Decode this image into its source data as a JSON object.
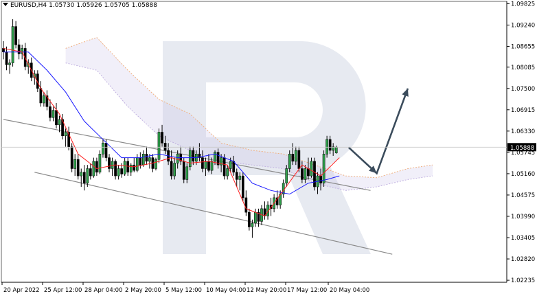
{
  "header": {
    "symbol": "EURUSD,H4",
    "open": "1.05730",
    "high": "1.05926",
    "low": "1.05705",
    "close": "1.05888"
  },
  "chart_data": {
    "type": "candlestick",
    "title": "EURUSD,H4",
    "y_ticks": [
      "1.09825",
      "1.09240",
      "1.08655",
      "1.08085",
      "1.07500",
      "1.06915",
      "1.06330",
      "1.05745",
      "1.05160",
      "1.04575",
      "1.03990",
      "1.03405",
      "1.02820",
      "1.02235"
    ],
    "y_range": [
      1.0218,
      1.0989
    ],
    "current_price": "1.05888",
    "x_ticks": [
      "20 Apr 2022",
      "25 Apr 12:00",
      "28 Apr 04:00",
      "2 May 20:00",
      "5 May 12:00",
      "10 May 04:00",
      "12 May 20:00",
      "17 May 12:00",
      "20 May 04:00"
    ],
    "grid": false,
    "indicators": [
      "Ichimoku cloud",
      "Tenkan-sen (red)",
      "Kijun-sen (blue)"
    ],
    "channel": {
      "upper": [
        [
          0,
          1.0665
        ],
        [
          118,
          1.047
        ]
      ],
      "lower": [
        [
          10,
          1.052
        ],
        [
          125,
          1.0295
        ]
      ]
    },
    "forecast_path": [
      [
        111,
        1.0588
      ],
      [
        120,
        1.0517
      ],
      [
        130,
        1.075
      ]
    ],
    "candles": [
      [
        1.086,
        1.088,
        1.083,
        1.085
      ],
      [
        1.085,
        1.0865,
        1.08,
        1.0815
      ],
      [
        1.0815,
        1.083,
        1.079,
        1.082
      ],
      [
        1.082,
        1.094,
        1.081,
        1.092
      ],
      [
        1.092,
        1.0935,
        1.086,
        1.087
      ],
      [
        1.087,
        1.0885,
        1.083,
        1.0845
      ],
      [
        1.0845,
        1.087,
        1.083,
        1.086
      ],
      [
        1.086,
        1.0875,
        1.08,
        1.081
      ],
      [
        1.081,
        1.083,
        1.079,
        1.082
      ],
      [
        1.082,
        1.0835,
        1.077,
        1.078
      ],
      [
        1.078,
        1.08,
        1.076,
        1.079
      ],
      [
        1.079,
        1.08,
        1.074,
        1.075
      ],
      [
        1.075,
        1.077,
        1.07,
        1.071
      ],
      [
        1.071,
        1.074,
        1.07,
        1.073
      ],
      [
        1.073,
        1.0745,
        1.069,
        1.07
      ],
      [
        1.07,
        1.072,
        1.066,
        1.067
      ],
      [
        1.067,
        1.07,
        1.066,
        1.069
      ],
      [
        1.069,
        1.071,
        1.064,
        1.065
      ],
      [
        1.065,
        1.0675,
        1.063,
        1.0665
      ],
      [
        1.0665,
        1.068,
        1.061,
        1.062
      ],
      [
        1.062,
        1.064,
        1.059,
        1.063
      ],
      [
        1.063,
        1.0645,
        1.058,
        1.059
      ],
      [
        1.059,
        1.06,
        1.052,
        1.053
      ],
      [
        1.053,
        1.057,
        1.051,
        1.0555
      ],
      [
        1.0555,
        1.057,
        1.05,
        1.051
      ],
      [
        1.051,
        1.053,
        1.048,
        1.052
      ],
      [
        1.052,
        1.054,
        1.047,
        1.049
      ],
      [
        1.049,
        1.054,
        1.048,
        1.053
      ],
      [
        1.053,
        1.0545,
        1.05,
        1.051
      ],
      [
        1.051,
        1.056,
        1.0505,
        1.055
      ],
      [
        1.055,
        1.056,
        1.051,
        1.052
      ],
      [
        1.052,
        1.058,
        1.0515,
        1.057
      ],
      [
        1.057,
        1.061,
        1.056,
        1.06
      ],
      [
        1.06,
        1.061,
        1.055,
        1.056
      ],
      [
        1.056,
        1.057,
        1.052,
        1.053
      ],
      [
        1.053,
        1.056,
        1.051,
        1.055
      ],
      [
        1.055,
        1.0555,
        1.05,
        1.051
      ],
      [
        1.051,
        1.054,
        1.05,
        1.053
      ],
      [
        1.053,
        1.0545,
        1.0505,
        1.0515
      ],
      [
        1.0515,
        1.056,
        1.051,
        1.055
      ],
      [
        1.055,
        1.056,
        1.051,
        1.052
      ],
      [
        1.052,
        1.0545,
        1.051,
        1.054
      ],
      [
        1.054,
        1.056,
        1.052,
        1.0525
      ],
      [
        1.0525,
        1.057,
        1.052,
        1.056
      ],
      [
        1.056,
        1.0575,
        1.053,
        1.054
      ],
      [
        1.054,
        1.058,
        1.0535,
        1.057
      ],
      [
        1.057,
        1.059,
        1.054,
        1.055
      ],
      [
        1.055,
        1.057,
        1.053,
        1.056
      ],
      [
        1.056,
        1.057,
        1.052,
        1.053
      ],
      [
        1.053,
        1.056,
        1.0525,
        1.0555
      ],
      [
        1.0555,
        1.064,
        1.0545,
        1.063
      ],
      [
        1.063,
        1.065,
        1.059,
        1.06
      ],
      [
        1.06,
        1.062,
        1.057,
        1.058
      ],
      [
        1.058,
        1.06,
        1.054,
        1.055
      ],
      [
        1.055,
        1.058,
        1.05,
        1.051
      ],
      [
        1.051,
        1.056,
        1.05,
        1.0545
      ],
      [
        1.0545,
        1.058,
        1.053,
        1.057
      ],
      [
        1.057,
        1.059,
        1.054,
        1.055
      ],
      [
        1.055,
        1.056,
        1.049,
        1.05
      ],
      [
        1.05,
        1.0545,
        1.049,
        1.0535
      ],
      [
        1.0535,
        1.059,
        1.0525,
        1.058
      ],
      [
        1.058,
        1.059,
        1.054,
        1.055
      ],
      [
        1.055,
        1.058,
        1.054,
        1.057
      ],
      [
        1.057,
        1.06,
        1.055,
        1.056
      ],
      [
        1.056,
        1.058,
        1.052,
        1.053
      ],
      [
        1.053,
        1.056,
        1.051,
        1.055
      ],
      [
        1.055,
        1.057,
        1.052,
        1.0525
      ],
      [
        1.0525,
        1.056,
        1.0515,
        1.055
      ],
      [
        1.055,
        1.058,
        1.054,
        1.0575
      ],
      [
        1.0575,
        1.0585,
        1.053,
        1.054
      ],
      [
        1.054,
        1.057,
        1.052,
        1.056
      ],
      [
        1.056,
        1.057,
        1.05,
        1.051
      ],
      [
        1.051,
        1.054,
        1.05,
        1.053
      ],
      [
        1.053,
        1.056,
        1.052,
        1.055
      ],
      [
        1.055,
        1.0565,
        1.051,
        1.052
      ],
      [
        1.052,
        1.053,
        1.048,
        1.05
      ],
      [
        1.05,
        1.052,
        1.047,
        1.051
      ],
      [
        1.051,
        1.052,
        1.044,
        1.045
      ],
      [
        1.045,
        1.047,
        1.04,
        1.041
      ],
      [
        1.041,
        1.042,
        1.036,
        1.037
      ],
      [
        1.037,
        1.039,
        1.034,
        1.038
      ],
      [
        1.038,
        1.042,
        1.037,
        1.041
      ],
      [
        1.041,
        1.042,
        1.037,
        1.0385
      ],
      [
        1.0385,
        1.043,
        1.0375,
        1.042
      ],
      [
        1.042,
        1.044,
        1.039,
        1.04
      ],
      [
        1.04,
        1.044,
        1.039,
        1.043
      ],
      [
        1.043,
        1.045,
        1.04,
        1.042
      ],
      [
        1.042,
        1.046,
        1.041,
        1.045
      ],
      [
        1.045,
        1.047,
        1.042,
        1.043
      ],
      [
        1.043,
        1.047,
        1.042,
        1.046
      ],
      [
        1.046,
        1.05,
        1.045,
        1.049
      ],
      [
        1.049,
        1.054,
        1.048,
        1.053
      ],
      [
        1.053,
        1.058,
        1.052,
        1.057
      ],
      [
        1.057,
        1.06,
        1.054,
        1.055
      ],
      [
        1.055,
        1.059,
        1.054,
        1.058
      ],
      [
        1.058,
        1.059,
        1.052,
        1.053
      ],
      [
        1.053,
        1.055,
        1.049,
        1.05
      ],
      [
        1.05,
        1.054,
        1.049,
        1.053
      ],
      [
        1.053,
        1.056,
        1.05,
        1.051
      ],
      [
        1.051,
        1.056,
        1.0505,
        1.055
      ],
      [
        1.055,
        1.056,
        1.047,
        1.048
      ],
      [
        1.048,
        1.052,
        1.046,
        1.051
      ],
      [
        1.051,
        1.053,
        1.047,
        1.049
      ],
      [
        1.049,
        1.058,
        1.048,
        1.057
      ],
      [
        1.057,
        1.062,
        1.056,
        1.061
      ],
      [
        1.061,
        1.062,
        1.057,
        1.058
      ],
      [
        1.058,
        1.06,
        1.0565,
        1.059
      ],
      [
        1.0573,
        1.0593,
        1.0571,
        1.0589
      ]
    ],
    "tenkan": [
      [
        0,
        1.086
      ],
      [
        6,
        1.085
      ],
      [
        12,
        1.075
      ],
      [
        18,
        1.068
      ],
      [
        24,
        1.057
      ],
      [
        30,
        1.053
      ],
      [
        36,
        1.054
      ],
      [
        42,
        1.0535
      ],
      [
        48,
        1.0545
      ],
      [
        54,
        1.056
      ],
      [
        60,
        1.0545
      ],
      [
        66,
        1.055
      ],
      [
        72,
        1.054
      ],
      [
        78,
        1.042
      ],
      [
        84,
        1.04
      ],
      [
        90,
        1.047
      ],
      [
        96,
        1.054
      ],
      [
        102,
        1.051
      ],
      [
        108,
        1.056
      ]
    ],
    "kijun": [
      [
        0,
        1.085
      ],
      [
        8,
        1.085
      ],
      [
        14,
        1.08
      ],
      [
        20,
        1.074
      ],
      [
        26,
        1.066
      ],
      [
        32,
        1.061
      ],
      [
        38,
        1.056
      ],
      [
        44,
        1.056
      ],
      [
        50,
        1.057
      ],
      [
        56,
        1.056
      ],
      [
        62,
        1.056
      ],
      [
        68,
        1.057
      ],
      [
        74,
        1.055
      ],
      [
        80,
        1.049
      ],
      [
        86,
        1.047
      ],
      [
        92,
        1.046
      ],
      [
        98,
        1.049
      ],
      [
        104,
        1.05
      ],
      [
        108,
        1.051
      ]
    ],
    "cloud": [
      [
        20,
        1.082,
        1.086
      ],
      [
        30,
        1.08,
        1.089
      ],
      [
        40,
        1.07,
        1.08
      ],
      [
        50,
        1.062,
        1.072
      ],
      [
        60,
        1.058,
        1.068
      ],
      [
        70,
        1.055,
        1.06
      ],
      [
        80,
        1.054,
        1.058
      ],
      [
        90,
        1.053,
        1.057
      ],
      [
        100,
        1.049,
        1.054
      ],
      [
        110,
        1.047,
        1.051
      ],
      [
        120,
        1.048,
        1.0505
      ],
      [
        130,
        1.05,
        1.053
      ],
      [
        138,
        1.051,
        1.054
      ]
    ]
  }
}
